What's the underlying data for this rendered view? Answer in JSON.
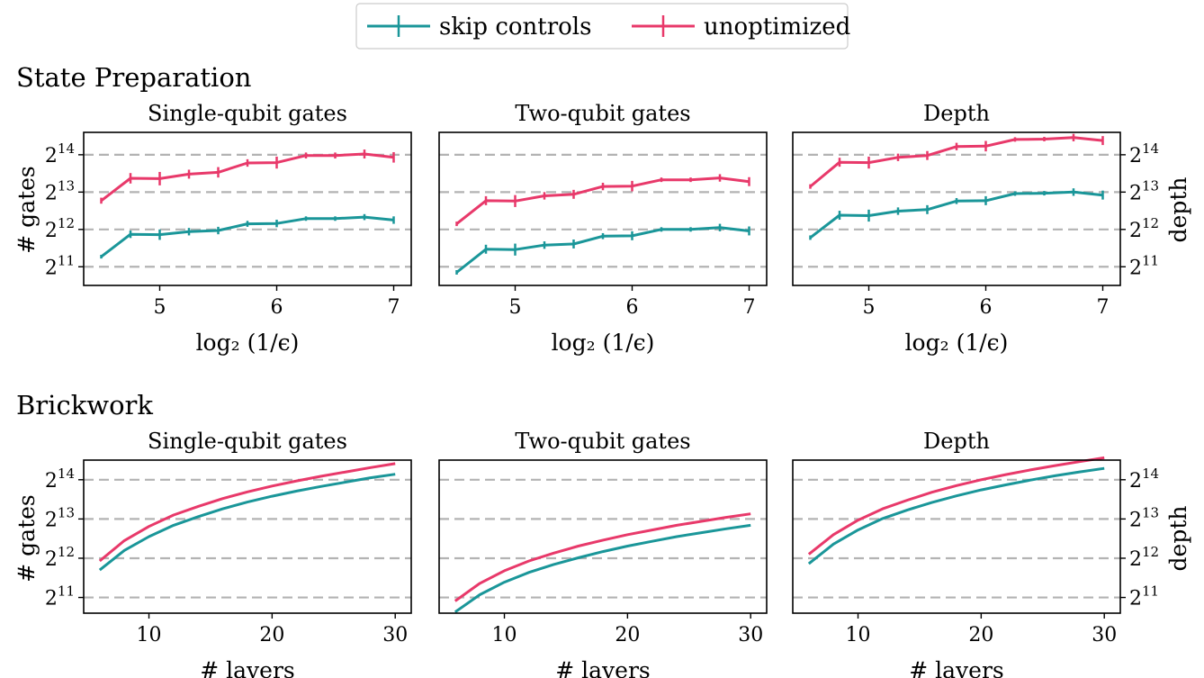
{
  "legend": {
    "items": [
      {
        "label": "skip controls",
        "color": "#1a9699"
      },
      {
        "label": "unoptimized",
        "color": "#e8396a"
      }
    ],
    "placement": "top-center"
  },
  "rows": [
    {
      "title": "State Preparation",
      "xlabel": "log₂ (1/ϵ)"
    },
    {
      "title": "Brickwork",
      "xlabel": "# layers"
    }
  ],
  "ylabel_left": "# gates",
  "ylabel_right": "depth",
  "panel_titles": [
    "Single-qubit gates",
    "Two-qubit gates",
    "Depth"
  ],
  "y_ticks": [
    {
      "value": 11,
      "base": "2",
      "exp": "11"
    },
    {
      "value": 12,
      "base": "2",
      "exp": "12"
    },
    {
      "value": 13,
      "base": "2",
      "exp": "13"
    },
    {
      "value": 14,
      "base": "2",
      "exp": "14"
    }
  ],
  "x_ticks_row1": [
    "5",
    "6",
    "7"
  ],
  "x_ticks_row2": [
    "10",
    "20",
    "30"
  ],
  "chart_data": [
    {
      "type": "line",
      "row": "State Preparation",
      "title": "Single-qubit gates",
      "xlabel": "log₂ (1/ϵ)",
      "ylabel": "# gates",
      "yscale": "log2",
      "ylim": [
        10.5,
        14.6
      ],
      "xlim": [
        4.35,
        7.15
      ],
      "grid": "y dashed",
      "x": [
        4.5,
        4.75,
        5.0,
        5.25,
        5.5,
        5.75,
        6.0,
        6.25,
        6.5,
        6.75,
        7.0
      ],
      "series": [
        {
          "name": "skip controls",
          "y": [
            11.27,
            11.87,
            11.86,
            11.94,
            11.97,
            12.15,
            12.16,
            12.29,
            12.29,
            12.33,
            12.25
          ],
          "err": [
            0.05,
            0.1,
            0.14,
            0.1,
            0.1,
            0.08,
            0.1,
            0.06,
            0.06,
            0.08,
            0.1
          ]
        },
        {
          "name": "unoptimized",
          "y": [
            12.77,
            13.37,
            13.36,
            13.48,
            13.53,
            13.78,
            13.79,
            13.98,
            13.98,
            14.02,
            13.93
          ],
          "err": [
            0.08,
            0.14,
            0.18,
            0.12,
            0.14,
            0.1,
            0.16,
            0.08,
            0.08,
            0.12,
            0.14
          ]
        }
      ]
    },
    {
      "type": "line",
      "row": "State Preparation",
      "title": "Two-qubit gates",
      "xlabel": "log₂ (1/ϵ)",
      "yscale": "log2",
      "ylim": [
        10.5,
        14.6
      ],
      "xlim": [
        4.35,
        7.15
      ],
      "grid": "y dashed",
      "x": [
        4.5,
        4.75,
        5.0,
        5.25,
        5.5,
        5.75,
        6.0,
        6.25,
        6.5,
        6.75,
        7.0
      ],
      "series": [
        {
          "name": "skip controls",
          "y": [
            10.85,
            11.47,
            11.46,
            11.58,
            11.61,
            11.82,
            11.83,
            12.0,
            12.0,
            12.05,
            11.96
          ],
          "err": [
            0.06,
            0.12,
            0.16,
            0.1,
            0.12,
            0.08,
            0.12,
            0.06,
            0.06,
            0.1,
            0.12
          ]
        },
        {
          "name": "unoptimized",
          "y": [
            12.15,
            12.77,
            12.76,
            12.9,
            12.94,
            13.15,
            13.16,
            13.33,
            13.33,
            13.38,
            13.28
          ],
          "err": [
            0.06,
            0.12,
            0.16,
            0.1,
            0.12,
            0.1,
            0.14,
            0.06,
            0.06,
            0.1,
            0.12
          ]
        }
      ]
    },
    {
      "type": "line",
      "row": "State Preparation",
      "title": "Depth",
      "xlabel": "log₂ (1/ϵ)",
      "ylabel": "depth",
      "yscale": "log2",
      "ylim": [
        10.5,
        14.6
      ],
      "xlim": [
        4.35,
        7.15
      ],
      "grid": "y dashed",
      "x": [
        4.5,
        4.75,
        5.0,
        5.25,
        5.5,
        5.75,
        6.0,
        6.25,
        6.5,
        6.75,
        7.0
      ],
      "series": [
        {
          "name": "skip controls",
          "y": [
            11.78,
            12.38,
            12.37,
            12.49,
            12.53,
            12.76,
            12.77,
            12.96,
            12.97,
            13.0,
            12.92
          ],
          "err": [
            0.06,
            0.12,
            0.16,
            0.1,
            0.12,
            0.08,
            0.12,
            0.06,
            0.06,
            0.1,
            0.12
          ]
        },
        {
          "name": "unoptimized",
          "y": [
            13.15,
            13.8,
            13.79,
            13.93,
            13.98,
            14.22,
            14.23,
            14.41,
            14.42,
            14.46,
            14.38
          ],
          "err": [
            0.06,
            0.12,
            0.16,
            0.1,
            0.12,
            0.1,
            0.14,
            0.06,
            0.06,
            0.1,
            0.12
          ]
        }
      ]
    },
    {
      "type": "line",
      "row": "Brickwork",
      "title": "Single-qubit gates",
      "xlabel": "# layers",
      "ylabel": "# gates",
      "yscale": "log2",
      "ylim": [
        10.6,
        14.5
      ],
      "xlim": [
        4.7,
        31.3
      ],
      "grid": "y dashed",
      "x": [
        6,
        8,
        10,
        12,
        14,
        16,
        18,
        20,
        22,
        24,
        26,
        28,
        30
      ],
      "series": [
        {
          "name": "skip controls",
          "y": [
            11.7,
            12.2,
            12.55,
            12.84,
            13.06,
            13.26,
            13.43,
            13.58,
            13.71,
            13.83,
            13.94,
            14.05,
            14.14
          ]
        },
        {
          "name": "unoptimized",
          "y": [
            11.93,
            12.45,
            12.81,
            13.1,
            13.32,
            13.52,
            13.69,
            13.84,
            13.97,
            14.09,
            14.2,
            14.31,
            14.41
          ]
        }
      ]
    },
    {
      "type": "line",
      "row": "Brickwork",
      "title": "Two-qubit gates",
      "xlabel": "# layers",
      "yscale": "log2",
      "ylim": [
        10.6,
        14.5
      ],
      "xlim": [
        4.7,
        31.3
      ],
      "grid": "y dashed",
      "x": [
        6,
        8,
        10,
        12,
        14,
        16,
        18,
        20,
        22,
        24,
        26,
        28,
        30
      ],
      "series": [
        {
          "name": "skip controls",
          "y": [
            10.63,
            11.07,
            11.39,
            11.64,
            11.84,
            12.01,
            12.17,
            12.31,
            12.43,
            12.55,
            12.65,
            12.75,
            12.84
          ]
        },
        {
          "name": "unoptimized",
          "y": [
            10.91,
            11.36,
            11.68,
            11.93,
            12.13,
            12.31,
            12.46,
            12.6,
            12.72,
            12.84,
            12.94,
            13.04,
            13.13
          ]
        }
      ]
    },
    {
      "type": "line",
      "row": "Brickwork",
      "title": "Depth",
      "xlabel": "# layers",
      "ylabel": "depth",
      "yscale": "log2",
      "ylim": [
        10.6,
        14.5
      ],
      "xlim": [
        4.7,
        31.3
      ],
      "grid": "y dashed",
      "x": [
        6,
        8,
        10,
        12,
        14,
        16,
        18,
        20,
        22,
        24,
        26,
        28,
        30
      ],
      "series": [
        {
          "name": "skip controls",
          "y": [
            11.86,
            12.36,
            12.72,
            13.01,
            13.23,
            13.42,
            13.59,
            13.74,
            13.87,
            13.99,
            14.1,
            14.2,
            14.29
          ]
        },
        {
          "name": "unoptimized",
          "y": [
            12.1,
            12.6,
            12.97,
            13.26,
            13.48,
            13.68,
            13.85,
            14.0,
            14.13,
            14.25,
            14.36,
            14.46,
            14.56
          ]
        }
      ]
    }
  ]
}
